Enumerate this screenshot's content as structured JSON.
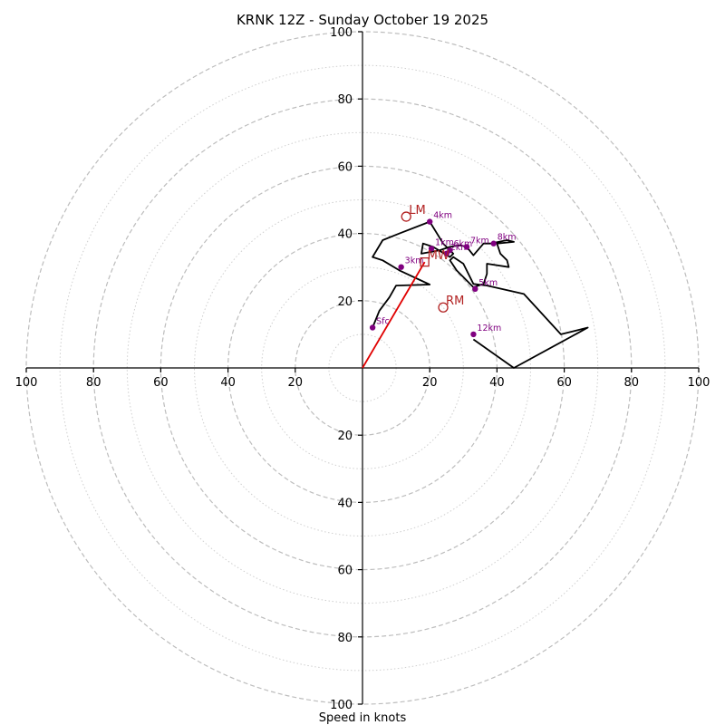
{
  "chart_data": {
    "type": "hodograph",
    "title": "KRNK 12Z - Sunday October 19 2025",
    "xlabel": "Speed in knots",
    "units": "knots",
    "range": [
      -100,
      100
    ],
    "major_rings": [
      20,
      40,
      60,
      80,
      100
    ],
    "minor_rings": [
      10,
      30,
      50,
      70,
      90
    ],
    "x_tick_labels": [
      "100",
      "80",
      "60",
      "40",
      "20",
      "20",
      "40",
      "60",
      "80",
      "100"
    ],
    "y_tick_labels": [
      "100",
      "80",
      "60",
      "40",
      "20",
      "20",
      "40",
      "60",
      "80",
      "100"
    ],
    "x_tick_values": [
      -100,
      -80,
      -60,
      -40,
      -20,
      20,
      40,
      60,
      80,
      100
    ],
    "y_tick_values": [
      100,
      80,
      60,
      40,
      20,
      -20,
      -40,
      -60,
      -80,
      -100
    ],
    "trace": [
      [
        3,
        12
      ],
      [
        5,
        17
      ],
      [
        8,
        21
      ],
      [
        10,
        24.5
      ],
      [
        20,
        24.8
      ],
      [
        11,
        29
      ],
      [
        6,
        32
      ],
      [
        3,
        33
      ],
      [
        6,
        38
      ],
      [
        11,
        40
      ],
      [
        20,
        43.5
      ],
      [
        24,
        37
      ],
      [
        27,
        34
      ],
      [
        26,
        33
      ],
      [
        21,
        36
      ],
      [
        18,
        37
      ],
      [
        17.5,
        34
      ],
      [
        23,
        35
      ],
      [
        26,
        36
      ],
      [
        29,
        36.5
      ],
      [
        31,
        36
      ],
      [
        33,
        33.5
      ],
      [
        36,
        37
      ],
      [
        38,
        37
      ],
      [
        43,
        38
      ],
      [
        45,
        37.5
      ],
      [
        40,
        37
      ],
      [
        41,
        34
      ],
      [
        43,
        32
      ],
      [
        43.5,
        30
      ],
      [
        37,
        31
      ],
      [
        37,
        28
      ],
      [
        36,
        25
      ],
      [
        33,
        24
      ],
      [
        30,
        27
      ],
      [
        28,
        29
      ],
      [
        26,
        32
      ],
      [
        27,
        33
      ],
      [
        30,
        31
      ],
      [
        33,
        25
      ],
      [
        37,
        24.5
      ],
      [
        48,
        22
      ],
      [
        59,
        10
      ],
      [
        67,
        12
      ],
      [
        45,
        0
      ],
      [
        33,
        8.5
      ]
    ],
    "height_markers": [
      {
        "label": "Sfc",
        "u": 3,
        "v": 12
      },
      {
        "label": "1km",
        "u": 20.5,
        "v": 35.5
      },
      {
        "label": "2km",
        "u": 25,
        "v": 34
      },
      {
        "label": "3km",
        "u": 11.5,
        "v": 30
      },
      {
        "label": "4km",
        "u": 20,
        "v": 43.5
      },
      {
        "label": "5km",
        "u": 33.5,
        "v": 23.5
      },
      {
        "label": "6km",
        "u": 26,
        "v": 35
      },
      {
        "label": "7km",
        "u": 31,
        "v": 36
      },
      {
        "label": "8km",
        "u": 39,
        "v": 37
      },
      {
        "label": "12km",
        "u": 33,
        "v": 10
      }
    ],
    "storm_motions": [
      {
        "label": "LM",
        "marker": "circle",
        "u": 13,
        "v": 45
      },
      {
        "label": "RM",
        "marker": "circle",
        "u": 24,
        "v": 18
      },
      {
        "label": "MW",
        "marker": "square",
        "u": 18.5,
        "v": 31.5
      }
    ],
    "shear_vector": {
      "from": [
        0,
        0
      ],
      "to": [
        18.5,
        31.5
      ],
      "color": "#e00000"
    }
  }
}
